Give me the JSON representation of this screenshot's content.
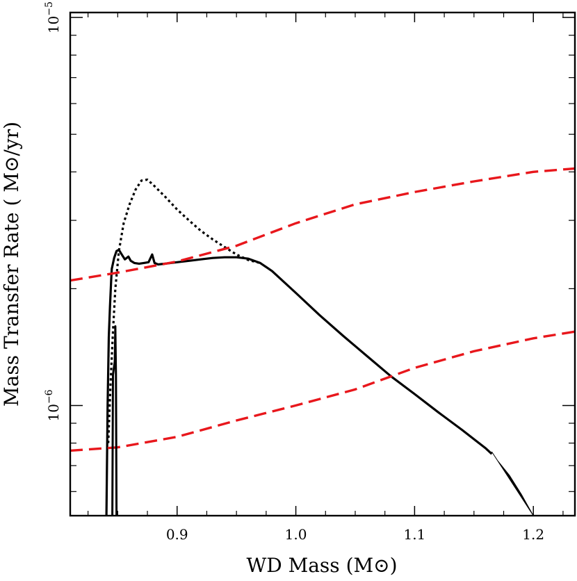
{
  "chart_data": {
    "type": "line",
    "title": "",
    "xlabel": "WD Mass (M⊙)",
    "ylabel": "Mass Transfer Rate ( M⊙/yr)",
    "xlim": [
      0.81,
      1.235
    ],
    "ylim": [
      5.2e-07,
      1.03e-05
    ],
    "yscale": "log",
    "grid": false,
    "x_ticks": [
      0.9,
      1.0,
      1.1,
      1.2
    ],
    "x_tick_labels": [
      "0.9",
      "1.0",
      "1.1",
      "1.2"
    ],
    "y_ticks": [
      1e-06,
      1e-05
    ],
    "y_tick_labels": [
      {
        "base": "10",
        "exp": "−6"
      },
      {
        "base": "10",
        "exp": "−5"
      }
    ],
    "series": [
      {
        "style": "solid",
        "color": "#000000",
        "x": [
          0.8405,
          0.8415,
          0.8425,
          0.8435,
          0.8445,
          0.845,
          0.847,
          0.849,
          0.851,
          0.853,
          0.856,
          0.859,
          0.861,
          0.864,
          0.868,
          0.872,
          0.876,
          0.879,
          0.881,
          0.884,
          0.89,
          0.9,
          0.91,
          0.92,
          0.93,
          0.94,
          0.95,
          0.96,
          0.97,
          0.98,
          1.0,
          1.02,
          1.04,
          1.06,
          1.08,
          1.1,
          1.12,
          1.14,
          1.16,
          1.165
        ],
        "y": [
          5.2e-07,
          1e-06,
          1.5e-06,
          1.8e-06,
          2.1e-06,
          2.25e-06,
          2.4e-06,
          2.5e-06,
          2.52e-06,
          2.46e-06,
          2.38e-06,
          2.42e-06,
          2.36e-06,
          2.33e-06,
          2.32e-06,
          2.33e-06,
          2.34e-06,
          2.45e-06,
          2.33e-06,
          2.31e-06,
          2.32e-06,
          2.34e-06,
          2.36e-06,
          2.38e-06,
          2.4e-06,
          2.41e-06,
          2.41e-06,
          2.39e-06,
          2.33e-06,
          2.22e-06,
          1.95e-06,
          1.71e-06,
          1.51e-06,
          1.34e-06,
          1.19e-06,
          1.07e-06,
          9.6e-07,
          8.65e-07,
          7.75e-07,
          7.5e-07
        ]
      },
      {
        "style": "dotted",
        "color": "#000000",
        "x": [
          0.842,
          0.844,
          0.846,
          0.848,
          0.851,
          0.855,
          0.86,
          0.865,
          0.87,
          0.875,
          0.88,
          0.89,
          0.9,
          0.91,
          0.92,
          0.93,
          0.94,
          0.95,
          0.96,
          0.97
        ],
        "y": [
          8e-07,
          1.15e-06,
          1.55e-06,
          2e-06,
          2.5e-06,
          2.95e-06,
          3.3e-06,
          3.6e-06,
          3.8e-06,
          3.82e-06,
          3.7e-06,
          3.45e-06,
          3.2e-06,
          3e-06,
          2.82e-06,
          2.68e-06,
          2.56e-06,
          2.45e-06,
          2.37e-06,
          2.33e-06
        ]
      },
      {
        "style": "dashed",
        "color": "#e8171c",
        "x": [
          0.81,
          0.85,
          0.9,
          0.95,
          1.0,
          1.05,
          1.1,
          1.15,
          1.2,
          1.235
        ],
        "y": [
          2.1e-06,
          2.2e-06,
          2.35e-06,
          2.58e-06,
          2.95e-06,
          3.3e-06,
          3.55e-06,
          3.78e-06,
          4e-06,
          4.08e-06
        ]
      },
      {
        "style": "dashed",
        "color": "#e8171c",
        "x": [
          0.81,
          0.85,
          0.9,
          0.95,
          1.0,
          1.05,
          1.1,
          1.15,
          1.2,
          1.235
        ],
        "y": [
          7.65e-07,
          7.8e-07,
          8.3e-07,
          9.15e-07,
          1e-06,
          1.1e-06,
          1.25e-06,
          1.38e-06,
          1.49e-06,
          1.55e-06
        ]
      },
      {
        "style": "spike",
        "color": "#000000",
        "x": [
          0.8455,
          0.846,
          0.8475,
          0.848,
          0.8485,
          0.849
        ],
        "y": [
          5.2e-07,
          1.2e-06,
          1.3e-06,
          1.6e-06,
          1.2e-06,
          5.2e-07
        ]
      },
      {
        "style": "filled",
        "color": "#000000",
        "x": [
          1.165,
          1.17,
          1.18,
          1.19,
          1.2,
          1.2
        ],
        "y": [
          7.6e-07,
          7.2e-07,
          6.6e-07,
          5.9e-07,
          5.2e-07,
          5.2e-07
        ]
      }
    ]
  }
}
